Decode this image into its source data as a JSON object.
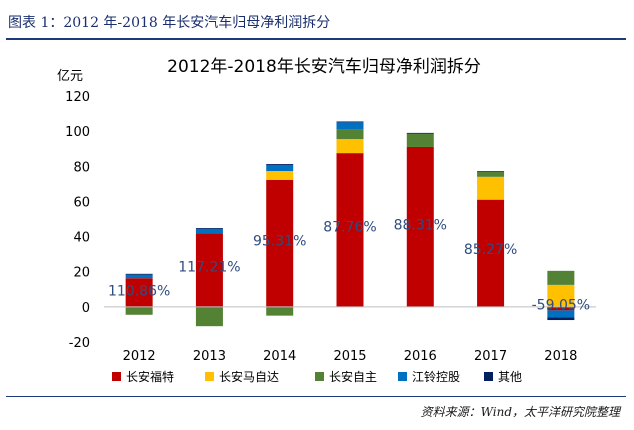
{
  "figure": {
    "header": "图表 1：2012 年-2018 年长安汽车归母净利润拆分",
    "source": "资料来源：Wind，太平洋研究院整理"
  },
  "colors": {
    "长安福特": "#c00000",
    "长安马自达": "#ffc000",
    "长安自主": "#548235",
    "江铃控股": "#0070c0",
    "其他": "#002060",
    "header_text": "#1a2f6e",
    "pct_label": "#2f4d7f"
  },
  "chart_data": {
    "type": "bar",
    "stacked": true,
    "title": "2012年-2018年长安汽车归母净利润拆分",
    "ylabel": "亿元",
    "xlabel": "",
    "ylim": [
      -20,
      120
    ],
    "yticks": [
      -20,
      0,
      20,
      40,
      60,
      80,
      100,
      120
    ],
    "categories": [
      "2012",
      "2013",
      "2014",
      "2015",
      "2016",
      "2017",
      "2018"
    ],
    "series": [
      {
        "name": "长安福特",
        "values": [
          16.3,
          41.8,
          72.3,
          87.5,
          91.0,
          61.0,
          -2.0
        ]
      },
      {
        "name": "长安马自达",
        "values": [
          0,
          0,
          5.0,
          8.0,
          0,
          13.0,
          12.5
        ]
      },
      {
        "name": "长安自主",
        "values": [
          -4.5,
          -11.0,
          -5.0,
          5.5,
          7.5,
          3.0,
          8.0
        ]
      },
      {
        "name": "江铃控股",
        "values": [
          2.0,
          2.5,
          3.5,
          4.0,
          0,
          0,
          -4.0
        ]
      },
      {
        "name": "其他",
        "values": [
          0.5,
          0.5,
          0.5,
          0.5,
          0.5,
          0.3,
          -1.5
        ]
      }
    ],
    "annotations": [
      {
        "category": "2012",
        "text": "110.86%",
        "y": 6.5
      },
      {
        "category": "2013",
        "text": "117.21%",
        "y": 20
      },
      {
        "category": "2014",
        "text": "95.31%",
        "y": 35
      },
      {
        "category": "2015",
        "text": "87.76%",
        "y": 43
      },
      {
        "category": "2016",
        "text": "88.31%",
        "y": 44
      },
      {
        "category": "2017",
        "text": "85.27%",
        "y": 30
      },
      {
        "category": "2018",
        "text": "-59.05%",
        "y": -1.5
      }
    ],
    "legend_position": "bottom",
    "grid": false
  }
}
